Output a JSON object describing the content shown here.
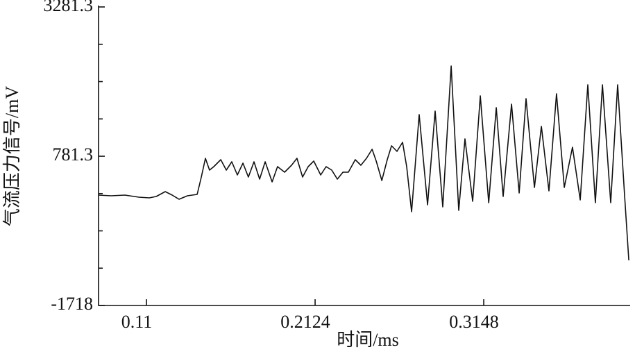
{
  "chart_data": {
    "type": "line",
    "color": "#111111",
    "x_label": "时间/ms",
    "y_label": "气流压力信号/mV",
    "x": [
      0.0809,
      0.0885,
      0.0969,
      0.1054,
      0.1117,
      0.1159,
      0.1214,
      0.1256,
      0.1298,
      0.1349,
      0.1408,
      0.1433,
      0.1458,
      0.1483,
      0.1509,
      0.1551,
      0.1585,
      0.1618,
      0.1652,
      0.1686,
      0.1719,
      0.1753,
      0.1787,
      0.1821,
      0.1863,
      0.1896,
      0.1939,
      0.1981,
      0.2014,
      0.2048,
      0.2082,
      0.2116,
      0.2158,
      0.2191,
      0.2225,
      0.2259,
      0.2293,
      0.2326,
      0.2368,
      0.2402,
      0.2436,
      0.247,
      0.2495,
      0.2529,
      0.2562,
      0.2588,
      0.2621,
      0.2655,
      0.268,
      0.271,
      0.2756,
      0.2807,
      0.2853,
      0.2899,
      0.295,
      0.2996,
      0.3034,
      0.3081,
      0.3127,
      0.3178,
      0.3224,
      0.3266,
      0.3317,
      0.3363,
      0.3405,
      0.3456,
      0.3498,
      0.3544,
      0.359,
      0.3637,
      0.3687,
      0.3734,
      0.378,
      0.3826,
      0.3869,
      0.3919,
      0.3961,
      0.4003,
      0.4029
    ],
    "values": [
      131,
      119,
      131,
      96,
      84,
      107,
      189,
      131,
      61,
      119,
      142,
      433,
      747,
      549,
      607,
      724,
      549,
      689,
      468,
      665,
      433,
      689,
      398,
      689,
      352,
      607,
      514,
      631,
      747,
      433,
      607,
      700,
      468,
      607,
      549,
      398,
      514,
      514,
      724,
      631,
      747,
      898,
      700,
      375,
      724,
      956,
      863,
      1014,
      607,
      -148,
      1479,
      -32,
      1537,
      -67,
      2293,
      -125,
      1072,
      26,
      1793,
      3,
      1596,
      107,
      1654,
      166,
      1747,
      259,
      1282,
      200,
      1828,
      259,
      933,
      49,
      1979,
      3,
      1979,
      3,
      1979,
      142,
      -962
    ],
    "xlim": [
      0.0809,
      0.4037
    ],
    "ylim": [
      -1718,
      3281.3
    ],
    "xticks": [
      0.11,
      0.2124,
      0.3148
    ],
    "yticks": [
      -1718,
      781.3,
      3281.3
    ],
    "y_minor_divisions": 4
  }
}
